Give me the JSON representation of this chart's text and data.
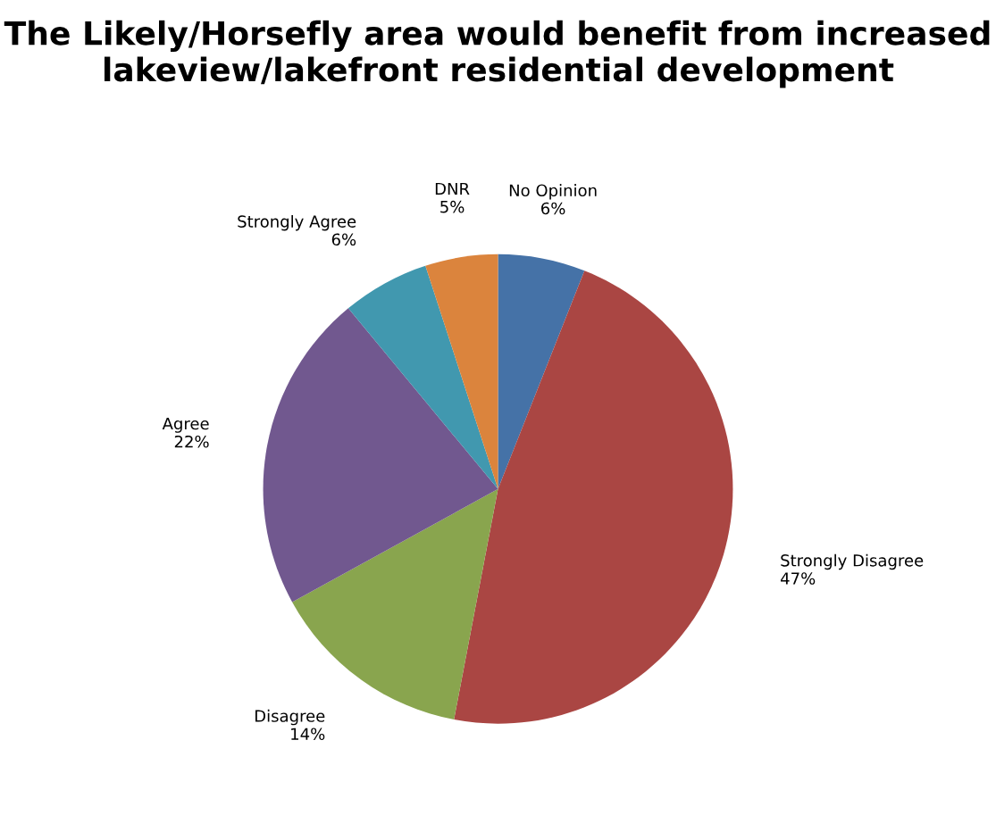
{
  "chart_data": {
    "type": "pie",
    "title": "The Likely/Horsefly area would benefit from increased lakeview/lakefront residential development",
    "categories": [
      "No Opinion",
      "Strongly Disagree",
      "Disagree",
      "Agree",
      "Strongly Agree",
      "DNR"
    ],
    "values": [
      6,
      47,
      14,
      22,
      6,
      5
    ],
    "value_labels": [
      "6%",
      "47%",
      "14%",
      "22%",
      "6%",
      "5%"
    ],
    "colors": [
      "#4572a7",
      "#aa4643",
      "#89a54e",
      "#71588f",
      "#4198af",
      "#db843d"
    ],
    "legend": false
  }
}
